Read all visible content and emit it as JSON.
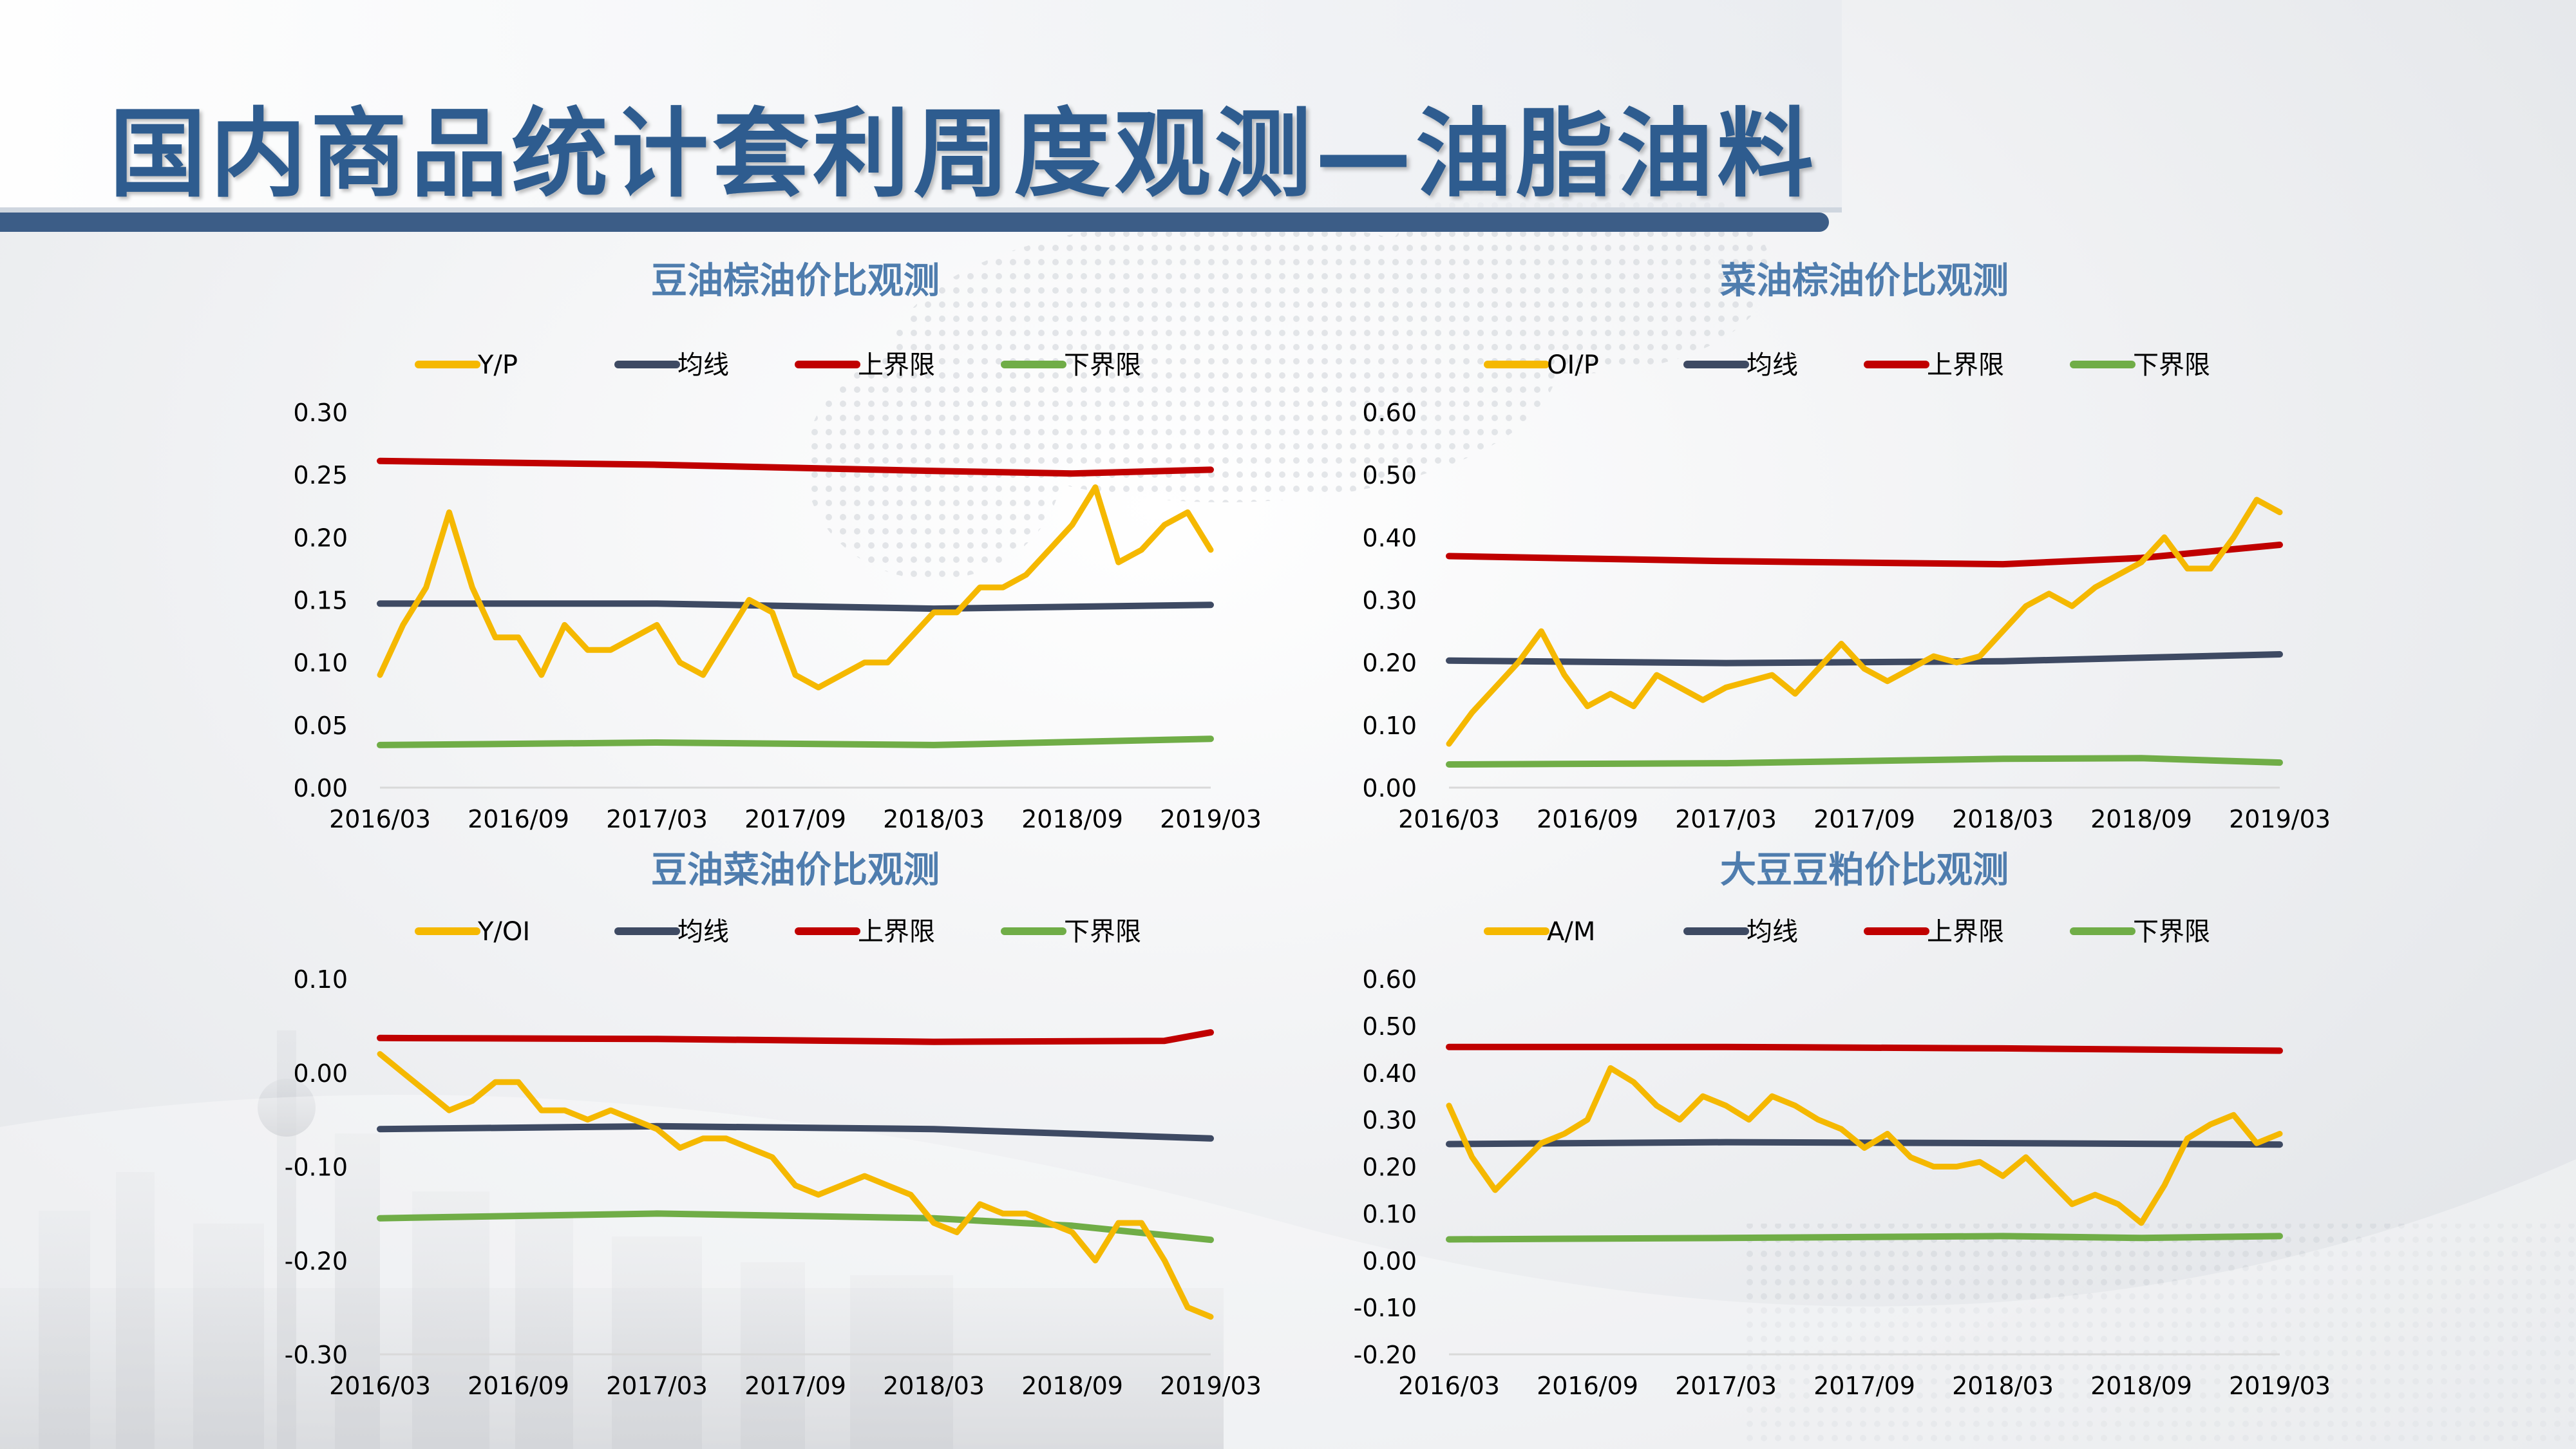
{
  "page": {
    "title": "国内商品统计套利周度观测—油脂油料"
  },
  "colors": {
    "ratio": "#f5b800",
    "mean": "#3e4a63",
    "upper": "#c00000",
    "lower": "#70ad47",
    "title_text": "#2e5c8f",
    "chart_title": "#4f7dae",
    "axis_text": "#000000"
  },
  "chart_data": [
    {
      "type": "line",
      "title": "豆油棕油价比观测",
      "legend_position": "top",
      "x_ticks": [
        "2016/03",
        "2016/09",
        "2017/03",
        "2017/09",
        "2018/03",
        "2018/09",
        "2019/03"
      ],
      "x_range": [
        "2016/03",
        "2019/03"
      ],
      "ylim": [
        0,
        0.3
      ],
      "y_ticks": [
        "0.00",
        "0.05",
        "0.10",
        "0.15",
        "0.20",
        "0.25",
        "0.30"
      ],
      "series": [
        {
          "name": "Y/P",
          "color_key": "ratio",
          "points": [
            [
              "2016/03",
              0.09
            ],
            [
              "2016/04",
              0.13
            ],
            [
              "2016/05",
              0.16
            ],
            [
              "2016/06",
              0.22
            ],
            [
              "2016/07",
              0.16
            ],
            [
              "2016/08",
              0.12
            ],
            [
              "2016/09",
              0.12
            ],
            [
              "2016/10",
              0.09
            ],
            [
              "2016/11",
              0.13
            ],
            [
              "2016/12",
              0.11
            ],
            [
              "2017/01",
              0.11
            ],
            [
              "2017/02",
              0.12
            ],
            [
              "2017/03",
              0.13
            ],
            [
              "2017/04",
              0.1
            ],
            [
              "2017/05",
              0.09
            ],
            [
              "2017/06",
              0.12
            ],
            [
              "2017/07",
              0.15
            ],
            [
              "2017/08",
              0.14
            ],
            [
              "2017/09",
              0.09
            ],
            [
              "2017/10",
              0.08
            ],
            [
              "2017/11",
              0.09
            ],
            [
              "2017/12",
              0.1
            ],
            [
              "2018/01",
              0.1
            ],
            [
              "2018/02",
              0.12
            ],
            [
              "2018/03",
              0.14
            ],
            [
              "2018/04",
              0.14
            ],
            [
              "2018/05",
              0.16
            ],
            [
              "2018/06",
              0.16
            ],
            [
              "2018/07",
              0.17
            ],
            [
              "2018/08",
              0.19
            ],
            [
              "2018/09",
              0.21
            ],
            [
              "2018/10",
              0.24
            ],
            [
              "2018/11",
              0.18
            ],
            [
              "2018/12",
              0.19
            ],
            [
              "2019/01",
              0.21
            ],
            [
              "2019/02",
              0.22
            ],
            [
              "2019/03",
              0.19
            ]
          ]
        },
        {
          "name": "均线",
          "color_key": "mean",
          "points": [
            [
              "2016/03",
              0.147
            ],
            [
              "2017/03",
              0.147
            ],
            [
              "2018/03",
              0.143
            ],
            [
              "2019/03",
              0.146
            ]
          ]
        },
        {
          "name": "上界限",
          "color_key": "upper",
          "points": [
            [
              "2016/03",
              0.261
            ],
            [
              "2017/03",
              0.258
            ],
            [
              "2018/03",
              0.253
            ],
            [
              "2018/09",
              0.251
            ],
            [
              "2019/03",
              0.254
            ]
          ]
        },
        {
          "name": "下界限",
          "color_key": "lower",
          "points": [
            [
              "2016/03",
              0.034
            ],
            [
              "2017/03",
              0.036
            ],
            [
              "2018/03",
              0.034
            ],
            [
              "2019/03",
              0.039
            ]
          ]
        }
      ]
    },
    {
      "type": "line",
      "title": "菜油棕油价比观测",
      "legend_position": "top",
      "x_ticks": [
        "2016/03",
        "2016/09",
        "2017/03",
        "2017/09",
        "2018/03",
        "2018/09",
        "2019/03"
      ],
      "x_range": [
        "2016/03",
        "2019/03"
      ],
      "ylim": [
        0,
        0.6
      ],
      "y_ticks": [
        "0.00",
        "0.10",
        "0.20",
        "0.30",
        "0.40",
        "0.50",
        "0.60"
      ],
      "series": [
        {
          "name": "OI/P",
          "color_key": "ratio",
          "points": [
            [
              "2016/03",
              0.07
            ],
            [
              "2016/04",
              0.12
            ],
            [
              "2016/05",
              0.16
            ],
            [
              "2016/06",
              0.2
            ],
            [
              "2016/07",
              0.25
            ],
            [
              "2016/08",
              0.18
            ],
            [
              "2016/09",
              0.13
            ],
            [
              "2016/10",
              0.15
            ],
            [
              "2016/11",
              0.13
            ],
            [
              "2016/12",
              0.18
            ],
            [
              "2017/01",
              0.16
            ],
            [
              "2017/02",
              0.14
            ],
            [
              "2017/03",
              0.16
            ],
            [
              "2017/04",
              0.17
            ],
            [
              "2017/05",
              0.18
            ],
            [
              "2017/06",
              0.15
            ],
            [
              "2017/07",
              0.19
            ],
            [
              "2017/08",
              0.23
            ],
            [
              "2017/09",
              0.19
            ],
            [
              "2017/10",
              0.17
            ],
            [
              "2017/11",
              0.19
            ],
            [
              "2017/12",
              0.21
            ],
            [
              "2018/01",
              0.2
            ],
            [
              "2018/02",
              0.21
            ],
            [
              "2018/03",
              0.25
            ],
            [
              "2018/04",
              0.29
            ],
            [
              "2018/05",
              0.31
            ],
            [
              "2018/06",
              0.29
            ],
            [
              "2018/07",
              0.32
            ],
            [
              "2018/08",
              0.34
            ],
            [
              "2018/09",
              0.36
            ],
            [
              "2018/10",
              0.4
            ],
            [
              "2018/11",
              0.35
            ],
            [
              "2018/12",
              0.35
            ],
            [
              "2019/01",
              0.4
            ],
            [
              "2019/02",
              0.46
            ],
            [
              "2019/03",
              0.44
            ]
          ]
        },
        {
          "name": "均线",
          "color_key": "mean",
          "points": [
            [
              "2016/03",
              0.203
            ],
            [
              "2017/03",
              0.199
            ],
            [
              "2018/03",
              0.202
            ],
            [
              "2019/03",
              0.213
            ]
          ]
        },
        {
          "name": "上界限",
          "color_key": "upper",
          "points": [
            [
              "2016/03",
              0.37
            ],
            [
              "2017/03",
              0.362
            ],
            [
              "2018/03",
              0.357
            ],
            [
              "2018/09",
              0.367
            ],
            [
              "2019/03",
              0.388
            ]
          ]
        },
        {
          "name": "下界限",
          "color_key": "lower",
          "points": [
            [
              "2016/03",
              0.037
            ],
            [
              "2017/03",
              0.039
            ],
            [
              "2018/03",
              0.046
            ],
            [
              "2018/09",
              0.047
            ],
            [
              "2019/03",
              0.04
            ]
          ]
        }
      ]
    },
    {
      "type": "line",
      "title": "豆油菜油价比观测",
      "legend_position": "top",
      "x_ticks": [
        "2016/03",
        "2016/09",
        "2017/03",
        "2017/09",
        "2018/03",
        "2018/09",
        "2019/03"
      ],
      "x_range": [
        "2016/03",
        "2019/03"
      ],
      "ylim": [
        -0.3,
        0.1
      ],
      "y_ticks": [
        "-0.30",
        "-0.20",
        "-0.10",
        "0.00",
        "0.10"
      ],
      "series": [
        {
          "name": "Y/OI",
          "color_key": "ratio",
          "points": [
            [
              "2016/03",
              0.02
            ],
            [
              "2016/04",
              0.0
            ],
            [
              "2016/05",
              -0.02
            ],
            [
              "2016/06",
              -0.04
            ],
            [
              "2016/07",
              -0.03
            ],
            [
              "2016/08",
              -0.01
            ],
            [
              "2016/09",
              -0.01
            ],
            [
              "2016/10",
              -0.04
            ],
            [
              "2016/11",
              -0.04
            ],
            [
              "2016/12",
              -0.05
            ],
            [
              "2017/01",
              -0.04
            ],
            [
              "2017/02",
              -0.05
            ],
            [
              "2017/03",
              -0.06
            ],
            [
              "2017/04",
              -0.08
            ],
            [
              "2017/05",
              -0.07
            ],
            [
              "2017/06",
              -0.07
            ],
            [
              "2017/07",
              -0.08
            ],
            [
              "2017/08",
              -0.09
            ],
            [
              "2017/09",
              -0.12
            ],
            [
              "2017/10",
              -0.13
            ],
            [
              "2017/11",
              -0.12
            ],
            [
              "2017/12",
              -0.11
            ],
            [
              "2018/01",
              -0.12
            ],
            [
              "2018/02",
              -0.13
            ],
            [
              "2018/03",
              -0.16
            ],
            [
              "2018/04",
              -0.17
            ],
            [
              "2018/05",
              -0.14
            ],
            [
              "2018/06",
              -0.15
            ],
            [
              "2018/07",
              -0.15
            ],
            [
              "2018/08",
              -0.16
            ],
            [
              "2018/09",
              -0.17
            ],
            [
              "2018/10",
              -0.2
            ],
            [
              "2018/11",
              -0.16
            ],
            [
              "2018/12",
              -0.16
            ],
            [
              "2019/01",
              -0.2
            ],
            [
              "2019/02",
              -0.25
            ],
            [
              "2019/03",
              -0.26
            ]
          ]
        },
        {
          "name": "均线",
          "color_key": "mean",
          "points": [
            [
              "2016/03",
              -0.06
            ],
            [
              "2017/03",
              -0.057
            ],
            [
              "2018/03",
              -0.06
            ],
            [
              "2019/03",
              -0.07
            ]
          ]
        },
        {
          "name": "上界限",
          "color_key": "upper",
          "points": [
            [
              "2016/03",
              0.037
            ],
            [
              "2017/03",
              0.036
            ],
            [
              "2018/03",
              0.033
            ],
            [
              "2019/01",
              0.034
            ],
            [
              "2019/03",
              0.043
            ]
          ]
        },
        {
          "name": "下界限",
          "color_key": "lower",
          "points": [
            [
              "2016/03",
              -0.155
            ],
            [
              "2017/03",
              -0.15
            ],
            [
              "2018/03",
              -0.155
            ],
            [
              "2018/09",
              -0.163
            ],
            [
              "2019/03",
              -0.178
            ]
          ]
        }
      ]
    },
    {
      "type": "line",
      "title": "大豆豆粕价比观测",
      "legend_position": "top",
      "x_ticks": [
        "2016/03",
        "2016/09",
        "2017/03",
        "2017/09",
        "2018/03",
        "2018/09",
        "2019/03"
      ],
      "x_range": [
        "2016/03",
        "2019/03"
      ],
      "ylim": [
        -0.2,
        0.6
      ],
      "y_ticks": [
        "-0.20",
        "-0.10",
        "0.00",
        "0.10",
        "0.20",
        "0.30",
        "0.40",
        "0.50",
        "0.60"
      ],
      "series": [
        {
          "name": "A/M",
          "color_key": "ratio",
          "points": [
            [
              "2016/03",
              0.33
            ],
            [
              "2016/04",
              0.22
            ],
            [
              "2016/05",
              0.15
            ],
            [
              "2016/06",
              0.2
            ],
            [
              "2016/07",
              0.25
            ],
            [
              "2016/08",
              0.27
            ],
            [
              "2016/09",
              0.3
            ],
            [
              "2016/10",
              0.41
            ],
            [
              "2016/11",
              0.38
            ],
            [
              "2016/12",
              0.33
            ],
            [
              "2017/01",
              0.3
            ],
            [
              "2017/02",
              0.35
            ],
            [
              "2017/03",
              0.33
            ],
            [
              "2017/04",
              0.3
            ],
            [
              "2017/05",
              0.35
            ],
            [
              "2017/06",
              0.33
            ],
            [
              "2017/07",
              0.3
            ],
            [
              "2017/08",
              0.28
            ],
            [
              "2017/09",
              0.24
            ],
            [
              "2017/10",
              0.27
            ],
            [
              "2017/11",
              0.22
            ],
            [
              "2017/12",
              0.2
            ],
            [
              "2018/01",
              0.2
            ],
            [
              "2018/02",
              0.21
            ],
            [
              "2018/03",
              0.18
            ],
            [
              "2018/04",
              0.22
            ],
            [
              "2018/05",
              0.17
            ],
            [
              "2018/06",
              0.12
            ],
            [
              "2018/07",
              0.14
            ],
            [
              "2018/08",
              0.12
            ],
            [
              "2018/09",
              0.08
            ],
            [
              "2018/10",
              0.16
            ],
            [
              "2018/11",
              0.26
            ],
            [
              "2018/12",
              0.29
            ],
            [
              "2019/01",
              0.31
            ],
            [
              "2019/02",
              0.25
            ],
            [
              "2019/03",
              0.27
            ]
          ]
        },
        {
          "name": "均线",
          "color_key": "mean",
          "points": [
            [
              "2016/03",
              0.248
            ],
            [
              "2017/03",
              0.252
            ],
            [
              "2018/03",
              0.25
            ],
            [
              "2019/03",
              0.247
            ]
          ]
        },
        {
          "name": "上界限",
          "color_key": "upper",
          "points": [
            [
              "2016/03",
              0.455
            ],
            [
              "2017/03",
              0.455
            ],
            [
              "2018/03",
              0.452
            ],
            [
              "2019/03",
              0.447
            ]
          ]
        },
        {
          "name": "下界限",
          "color_key": "lower",
          "points": [
            [
              "2016/03",
              0.045
            ],
            [
              "2017/03",
              0.048
            ],
            [
              "2018/03",
              0.052
            ],
            [
              "2018/09",
              0.048
            ],
            [
              "2019/03",
              0.052
            ]
          ]
        }
      ]
    }
  ]
}
